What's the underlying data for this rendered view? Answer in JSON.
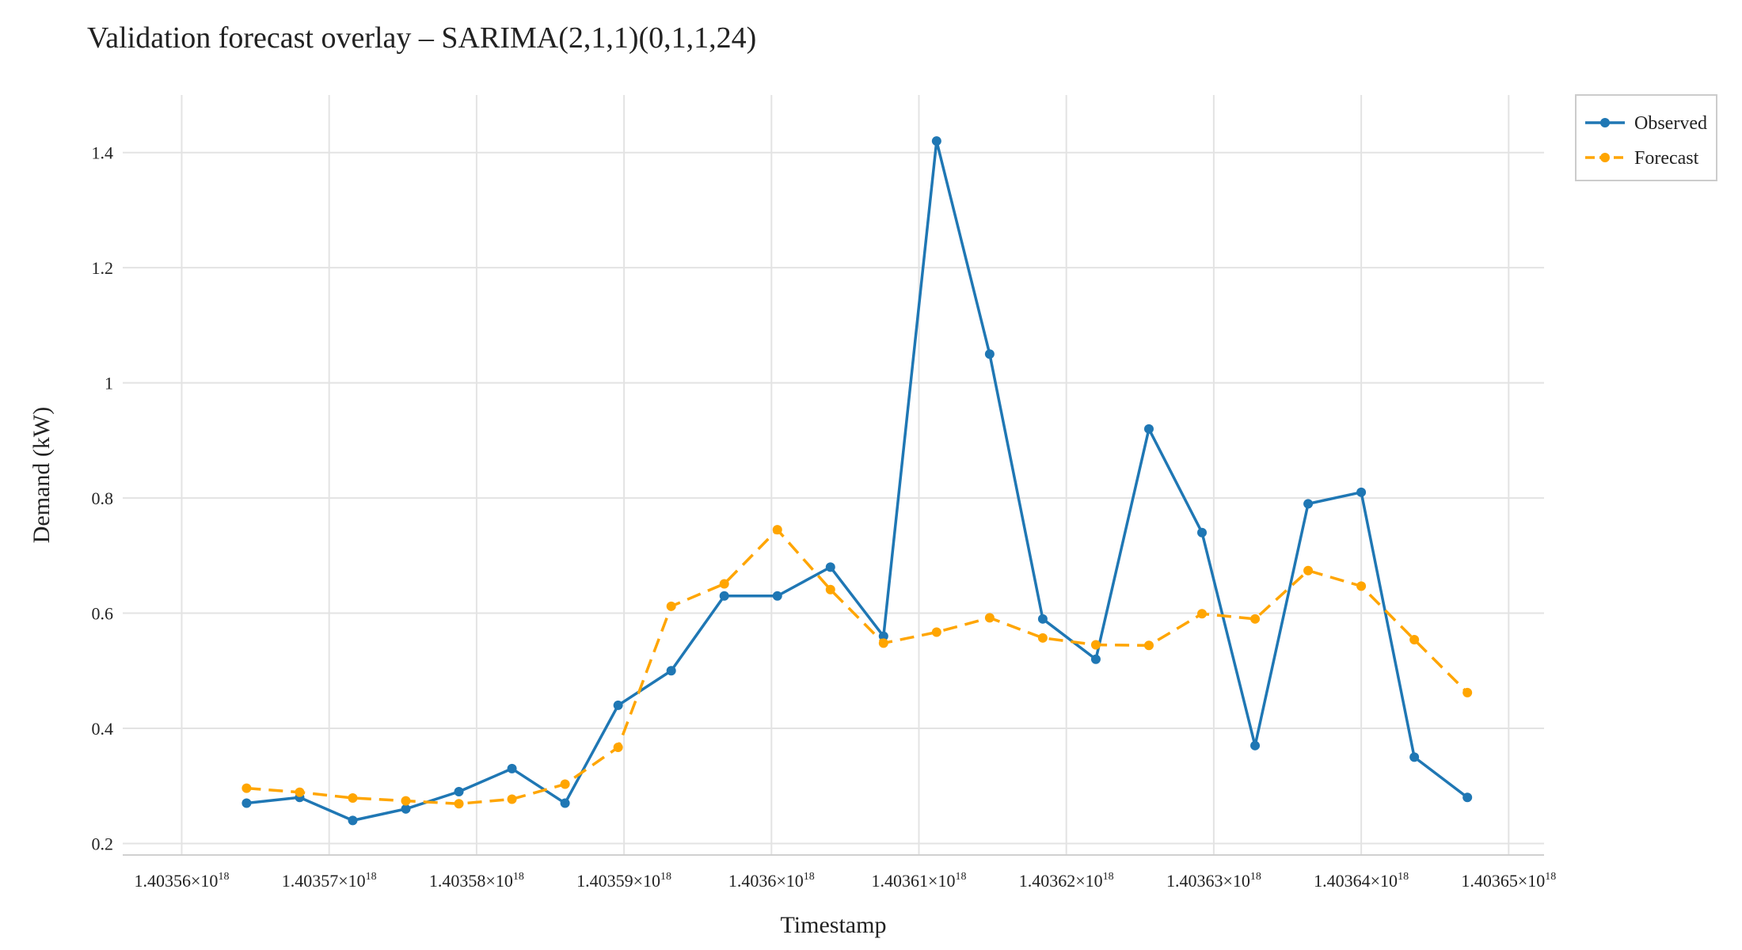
{
  "chart_data": {
    "type": "line",
    "title": "Validation forecast overlay – SARIMA(2,1,1)(0,1,1,24)",
    "xlabel": "Timestamp",
    "ylabel": "Demand (kW)",
    "x_tick_values": [
      1.40356e+18,
      1.40357e+18,
      1.40358e+18,
      1.40359e+18,
      1.4036e+18,
      1.40361e+18,
      1.40362e+18,
      1.40363e+18,
      1.40364e+18,
      1.40365e+18
    ],
    "x_tick_labels": [
      {
        "mantissa": "1.40356",
        "exp": "18"
      },
      {
        "mantissa": "1.40357",
        "exp": "18"
      },
      {
        "mantissa": "1.40358",
        "exp": "18"
      },
      {
        "mantissa": "1.40359",
        "exp": "18"
      },
      {
        "mantissa": "1.4036",
        "exp": "18"
      },
      {
        "mantissa": "1.40361",
        "exp": "18"
      },
      {
        "mantissa": "1.40362",
        "exp": "18"
      },
      {
        "mantissa": "1.40363",
        "exp": "18"
      },
      {
        "mantissa": "1.40364",
        "exp": "18"
      },
      {
        "mantissa": "1.40365",
        "exp": "18"
      }
    ],
    "y_ticks": [
      0.2,
      0.4,
      0.6,
      0.8,
      1.0,
      1.2,
      1.4
    ],
    "y_tick_labels": [
      "0.2",
      "0.4",
      "0.6",
      "0.8",
      "1",
      "1.2",
      "1.4"
    ],
    "xlim": [
      1.403556e+18,
      1.4036524e+18
    ],
    "ylim": [
      0.18,
      1.5
    ],
    "x": [
      1.4035644e+18,
      1.403568e+18,
      1.4035716e+18,
      1.4035752e+18,
      1.4035788e+18,
      1.4035824e+18,
      1.403586e+18,
      1.4035896e+18,
      1.4035932e+18,
      1.4035968e+18,
      1.4036004e+18,
      1.403604e+18,
      1.4036076e+18,
      1.4036112e+18,
      1.4036148e+18,
      1.4036184e+18,
      1.403622e+18,
      1.4036256e+18,
      1.4036292e+18,
      1.4036328e+18,
      1.4036364e+18,
      1.40364e+18,
      1.4036436e+18,
      1.4036472e+18
    ],
    "series": [
      {
        "name": "Observed",
        "color": "#1f77b4",
        "dash": "solid",
        "values": [
          0.27,
          0.28,
          0.24,
          0.26,
          0.29,
          0.33,
          0.27,
          0.44,
          0.5,
          0.63,
          0.63,
          0.68,
          0.56,
          1.42,
          1.05,
          0.59,
          0.52,
          0.92,
          0.74,
          0.37,
          0.79,
          0.81,
          0.35,
          0.28
        ]
      },
      {
        "name": "Forecast",
        "color": "#ffa500",
        "dash": "dashed",
        "values": [
          0.296,
          0.289,
          0.279,
          0.274,
          0.269,
          0.277,
          0.303,
          0.367,
          0.612,
          0.651,
          0.745,
          0.641,
          0.548,
          0.567,
          0.592,
          0.557,
          0.545,
          0.544,
          0.599,
          0.59,
          0.674,
          0.647,
          0.554,
          0.462
        ]
      }
    ],
    "grid": true,
    "legend_position": "top-right"
  }
}
